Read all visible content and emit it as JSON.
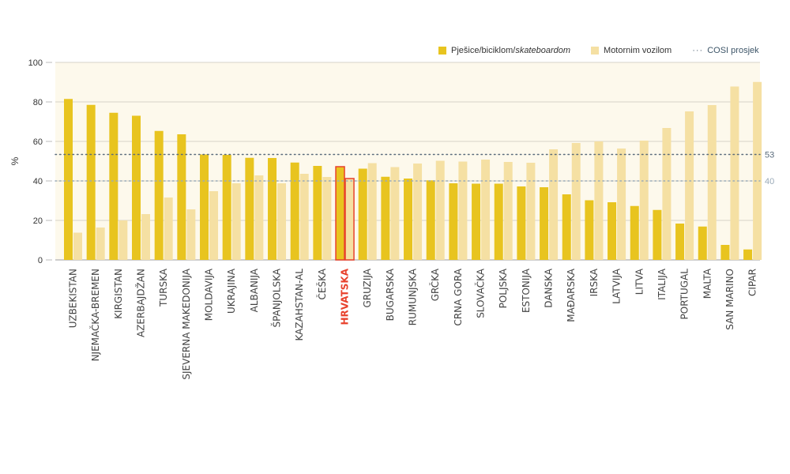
{
  "legend": {
    "series1_prefix": "Pješice/biciklom/",
    "series1_italic": "skateboardom",
    "series2": "Motornim vozilom",
    "reference": "COSI prosjek"
  },
  "colors": {
    "walk": "#e8c41f",
    "motor": "#f5e0a3",
    "plot_bg": "#fdf9ec",
    "highlight": "#e8412c",
    "ref53": "#5a6b7b",
    "ref40": "#9aaab8"
  },
  "chart_data": {
    "type": "bar",
    "title": "",
    "xlabel": "",
    "ylabel": "%",
    "ylim": [
      0,
      100
    ],
    "yticks": [
      0,
      20,
      40,
      60,
      80,
      100
    ],
    "grid": true,
    "legend_position": "top-right",
    "highlight_category": "HRVATSKA",
    "categories": [
      "UZBEKISTAN",
      "NJEMAČKA-BREMEN",
      "KIRGISTAN",
      "AZERBAJDŽAN",
      "TURSKA",
      "SJEVERNA MAKEDONIJA",
      "MOLDAVIJA",
      "UKRAJINA",
      "ALBANIJA",
      "ŠPANJOLSKA",
      "KAZAHSTAN-AL",
      "ČEŠKA",
      "HRVATSKA",
      "GRUZIJA",
      "BUGARSKA",
      "RUMUNJSKA",
      "GRČKA",
      "CRNA GORA",
      "SLOVAČKA",
      "POLJSKA",
      "ESTONIJA",
      "DANSKA",
      "MAĐARSKA",
      "IRSKA",
      "LATVIJA",
      "LITVA",
      "ITALIJA",
      "PORTUGAL",
      "MALTA",
      "SAN MARINO",
      "CIPAR"
    ],
    "series": [
      {
        "name": "Pješice/biciklom/skateboardom",
        "values": [
          81.5,
          78.5,
          74.5,
          73,
          65.3,
          63.6,
          53.4,
          53.2,
          51.7,
          51.6,
          49.3,
          47.6,
          47.2,
          46.2,
          42.1,
          41.2,
          40.3,
          38.8,
          38.6,
          38.6,
          37.2,
          36.8,
          33.2,
          30.2,
          29.2,
          27.3,
          25.3,
          18.4,
          16.9,
          7.6,
          5.3
        ]
      },
      {
        "name": "Motornim vozilom",
        "values": [
          13.8,
          16.4,
          20,
          23.2,
          31.6,
          25.6,
          34.8,
          38.8,
          42.8,
          38.8,
          43.6,
          42,
          41.2,
          49,
          47,
          48.8,
          50.2,
          49.8,
          50.8,
          49.6,
          49.2,
          56,
          59.2,
          60,
          56.4,
          60.4,
          66.8,
          75.2,
          78.4,
          87.8,
          90.1
        ]
      }
    ],
    "reference_lines": [
      {
        "value": 53.4,
        "label": "53",
        "name": "COSI prosjek (pješice)"
      },
      {
        "value": 40,
        "label": "40",
        "name": "COSI prosjek (motornim vozilom)"
      }
    ]
  }
}
